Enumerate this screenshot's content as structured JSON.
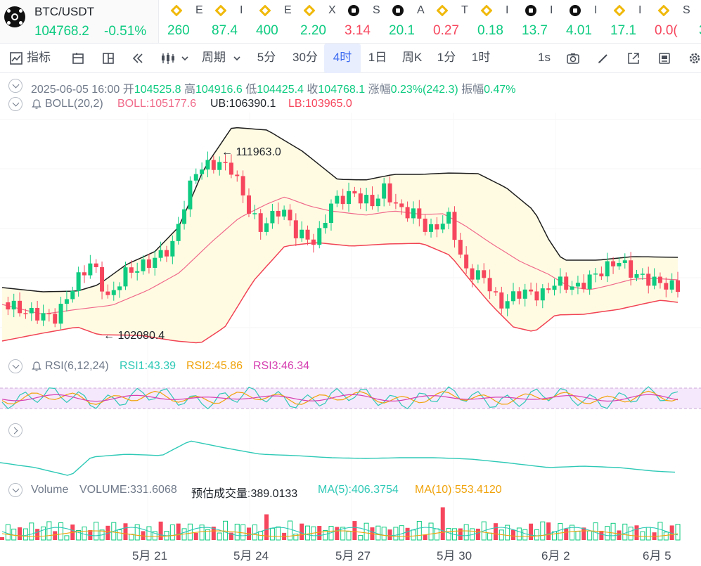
{
  "main_pair": {
    "symbol": "BTC/USDT",
    "price": "104768.2",
    "change": "-0.51%"
  },
  "ticker_items": [
    {
      "icon": "bnb-icon",
      "symbol": "E",
      "value": "260",
      "trend": "up"
    },
    {
      "icon": "bnb-icon",
      "symbol": "I",
      "value": "87.4",
      "trend": "up"
    },
    {
      "icon": "bnb-icon",
      "symbol": "E",
      "value": "400",
      "trend": "up"
    },
    {
      "icon": "bnb-icon",
      "symbol": "X",
      "value": "2.20",
      "trend": "up"
    },
    {
      "icon": "okx-icon",
      "symbol": "S",
      "value": "3.14",
      "trend": "down"
    },
    {
      "icon": "okx-icon",
      "symbol": "A",
      "value": "20.1",
      "trend": "up"
    },
    {
      "icon": "bnb-icon",
      "symbol": "T",
      "value": "0.27",
      "trend": "down"
    },
    {
      "icon": "bnb-icon",
      "symbol": "I",
      "value": "0.18",
      "trend": "up"
    },
    {
      "icon": "okx-icon",
      "symbol": "I",
      "value": "13.7",
      "trend": "up"
    },
    {
      "icon": "okx-icon",
      "symbol": "I",
      "value": "4.01",
      "trend": "up"
    },
    {
      "icon": "bnb-icon",
      "symbol": "I",
      "value": "17.1",
      "trend": "up"
    },
    {
      "icon": "bnb-icon",
      "symbol": "S",
      "value": "0.0(",
      "trend": "down"
    },
    {
      "icon": "bnb-icon",
      "symbol": "",
      "value": "3",
      "trend": "up"
    }
  ],
  "toolbar": {
    "indicators_label": "指标",
    "period_label": "周期",
    "intervals": [
      "5分",
      "30分",
      "4时",
      "1日",
      "周K",
      "1分",
      "1时"
    ],
    "active_interval": "4时",
    "refresh_label": "1s"
  },
  "ohlc": {
    "datetime": "2025-06-05 16:00",
    "open_label": "开",
    "open": "104525.8",
    "high_label": "高",
    "high": "104916.6",
    "low_label": "低",
    "low": "104425.4",
    "close_label": "收",
    "close": "104768.1",
    "change_label": "涨幅",
    "change": "0.23%(242.3)",
    "amplitude_label": "振幅",
    "amplitude": "0.47%"
  },
  "boll": {
    "label": "BOLL(20,2)",
    "boll": "BOLL:105177.6",
    "ub": "UB:106390.1",
    "lb": "LB:103965.0"
  },
  "rsi": {
    "label": "RSI(6,12,24)",
    "rsi1": "RSI1:43.39",
    "rsi2": "RSI2:45.86",
    "rsi3": "RSI3:46.34"
  },
  "volume": {
    "label": "Volume",
    "volume": "VOLUME:331.6068",
    "estimated": "预估成交量:389.0133",
    "ma5": "MA(5):406.3754",
    "ma10": "MA(10):553.4120"
  },
  "price_marks": {
    "high_mark": "111963.0",
    "low_mark": "102080.4"
  },
  "x_axis_labels": [
    "5月 21",
    "5月 24",
    "5月 27",
    "5月 30",
    "6月 2",
    "6月 5"
  ],
  "colors": {
    "up": "#0ecb81",
    "down": "#f6465d",
    "accent": "#3d6cf0",
    "boll_mid": "#f06a8a",
    "rsi1": "#2ec9b6",
    "rsi2": "#f0a30b",
    "rsi3": "#d53fb0"
  }
}
